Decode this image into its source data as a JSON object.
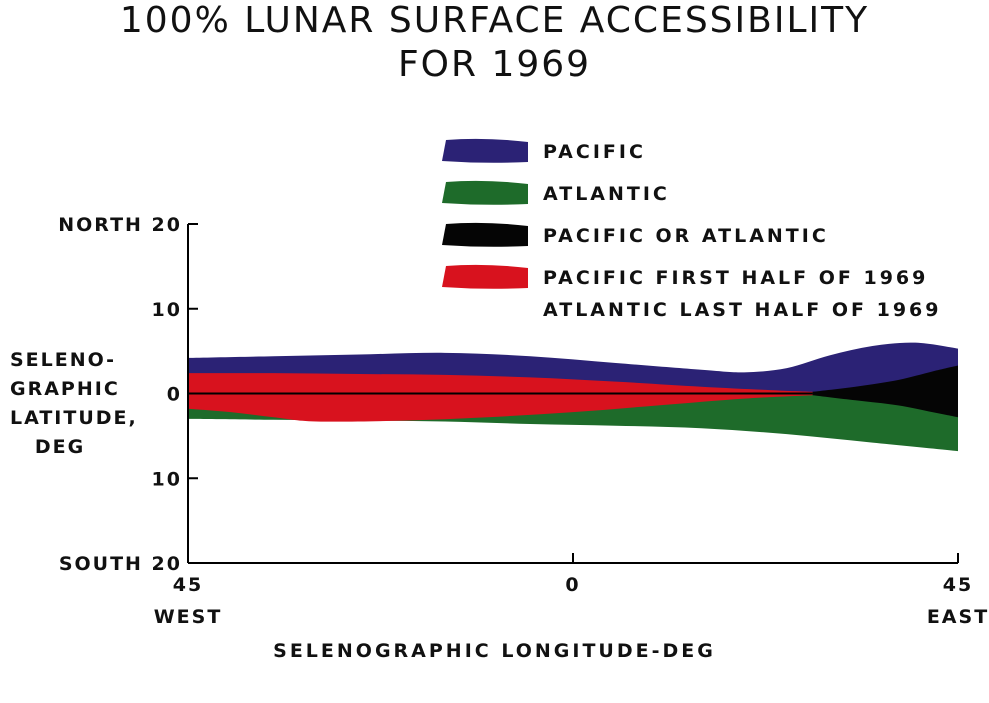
{
  "chart_data": {
    "type": "area",
    "title_line1": "100% LUNAR SURFACE ACCESSIBILITY",
    "title_line2": "FOR 1969",
    "xlabel": "SELENOGRAPHIC LONGITUDE-DEG",
    "ylabel_lines": [
      "SELENO-",
      "GRAPHIC",
      "LATITUDE,",
      "DEG"
    ],
    "xlim": [
      -45,
      45
    ],
    "ylim": [
      -20,
      20
    ],
    "x_ticks": [
      {
        "value": -45,
        "line1": "45",
        "line2": "WEST"
      },
      {
        "value": 0,
        "line1": "0",
        "line2": ""
      },
      {
        "value": 45,
        "line1": "45",
        "line2": "EAST"
      }
    ],
    "y_ticks": [
      {
        "value": 20,
        "label": "NORTH 20"
      },
      {
        "value": 10,
        "label": "10"
      },
      {
        "value": 0,
        "label": "0"
      },
      {
        "value": -10,
        "label": "10"
      },
      {
        "value": -20,
        "label": "SOUTH 20"
      }
    ],
    "legend": [
      {
        "key": "pacific",
        "lines": [
          "PACIFIC"
        ],
        "color": "#2b2275"
      },
      {
        "key": "atlantic",
        "lines": [
          "ATLANTIC"
        ],
        "color": "#1e6b2a"
      },
      {
        "key": "either",
        "lines": [
          "PACIFIC OR ATLANTIC"
        ],
        "color": "#050505"
      },
      {
        "key": "split",
        "lines": [
          "PACIFIC FIRST HALF OF 1969",
          "ATLANTIC LAST HALF OF 1969"
        ],
        "color": "#d8121e"
      }
    ],
    "regions": [
      {
        "key": "pacific",
        "color": "#2b2275",
        "upper": [
          [
            -45,
            4.2
          ],
          [
            -35,
            4.4
          ],
          [
            -25,
            4.6
          ],
          [
            -15,
            4.8
          ],
          [
            -5,
            4.4
          ],
          [
            5,
            3.6
          ],
          [
            15,
            2.8
          ],
          [
            20,
            2.5
          ],
          [
            25,
            3.0
          ],
          [
            30,
            4.5
          ],
          [
            35,
            5.6
          ],
          [
            40,
            6.0
          ],
          [
            45,
            5.3
          ]
        ],
        "lower": [
          [
            -45,
            0
          ],
          [
            45,
            0
          ]
        ]
      },
      {
        "key": "atlantic",
        "color": "#1e6b2a",
        "upper": [
          [
            -45,
            0
          ],
          [
            45,
            0
          ]
        ],
        "lower": [
          [
            -45,
            -3.0
          ],
          [
            -35,
            -3.1
          ],
          [
            -25,
            -3.2
          ],
          [
            -15,
            -3.3
          ],
          [
            -5,
            -3.6
          ],
          [
            5,
            -3.8
          ],
          [
            15,
            -4.1
          ],
          [
            25,
            -4.8
          ],
          [
            35,
            -5.8
          ],
          [
            45,
            -6.8
          ]
        ]
      },
      {
        "key": "either",
        "color": "#050505",
        "upper": [
          [
            28,
            0.2
          ],
          [
            33,
            0.8
          ],
          [
            38,
            1.6
          ],
          [
            42,
            2.6
          ],
          [
            45,
            3.3
          ]
        ],
        "lower": [
          [
            28,
            -0.2
          ],
          [
            33,
            -0.8
          ],
          [
            38,
            -1.4
          ],
          [
            42,
            -2.2
          ],
          [
            45,
            -2.8
          ]
        ]
      },
      {
        "key": "split",
        "color": "#d8121e",
        "upper": [
          [
            -45,
            2.4
          ],
          [
            -35,
            2.4
          ],
          [
            -25,
            2.3
          ],
          [
            -15,
            2.2
          ],
          [
            -5,
            1.9
          ],
          [
            5,
            1.4
          ],
          [
            15,
            0.8
          ],
          [
            23,
            0.4
          ],
          [
            28,
            0.2
          ]
        ],
        "lower": [
          [
            -45,
            -1.8
          ],
          [
            -40,
            -2.2
          ],
          [
            -35,
            -2.8
          ],
          [
            -30,
            -3.3
          ],
          [
            -20,
            -3.2
          ],
          [
            -10,
            -2.8
          ],
          [
            0,
            -2.2
          ],
          [
            10,
            -1.4
          ],
          [
            20,
            -0.6
          ],
          [
            28,
            -0.2
          ]
        ]
      }
    ]
  }
}
